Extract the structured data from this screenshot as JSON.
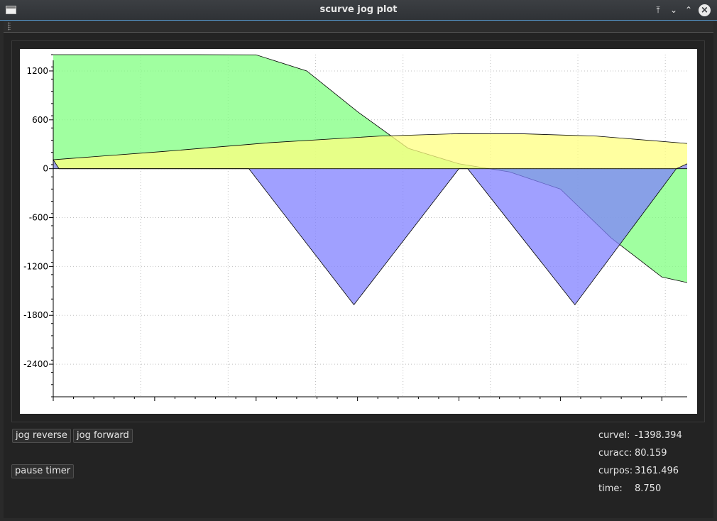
{
  "window": {
    "title": "scurve jog plot",
    "icons": {
      "app": "window-icon",
      "keep_above": "keep-above-icon",
      "minimize": "minimize-icon",
      "maximize": "maximize-icon",
      "close": "close-icon"
    }
  },
  "controls": {
    "jog_reverse": "jog reverse",
    "jog_forward": "jog forward",
    "pause_timer": "pause timer"
  },
  "stats": [
    {
      "label": "curvel:",
      "value": "-1398.394"
    },
    {
      "label": "curacc:",
      "value": "80.159"
    },
    {
      "label": "curpos:",
      "value": "3161.496"
    },
    {
      "label": "time:",
      "value": "8.750"
    }
  ],
  "chart_data": {
    "type": "area",
    "xlim": [
      0,
      8.75
    ],
    "ylim": [
      -2800,
      1400
    ],
    "yticks": [
      1200,
      600,
      0,
      -600,
      -1200,
      -1800,
      -2400
    ],
    "ytick_labels": [
      "1200",
      "600",
      "0",
      "-600",
      "-1200",
      "-1800",
      "-2400"
    ],
    "grid": true,
    "legend": "none",
    "series": [
      {
        "color": "#80ff80",
        "x": [
          0,
          2.0,
          2.8,
          3.5,
          4.2,
          4.9,
          5.6,
          6.3,
          7.0,
          7.7,
          8.4,
          8.75
        ],
        "y": [
          1400,
          1400,
          1398,
          1200,
          700,
          250,
          60,
          -40,
          -250,
          -850,
          -1330,
          -1398
        ]
      },
      {
        "color": "#ffff80",
        "x": [
          0,
          1.5,
          3.0,
          4.5,
          5.6,
          6.5,
          7.5,
          8.75
        ],
        "y": [
          110,
          210,
          320,
          400,
          430,
          428,
          400,
          310
        ]
      },
      {
        "color": "#8080ff",
        "x": [
          0,
          0.08,
          2.7,
          4.15,
          5.6,
          5.72,
          7.2,
          8.6,
          8.75
        ],
        "y": [
          110,
          0,
          0,
          -1670,
          0,
          0,
          -1670,
          0,
          60
        ]
      }
    ]
  }
}
